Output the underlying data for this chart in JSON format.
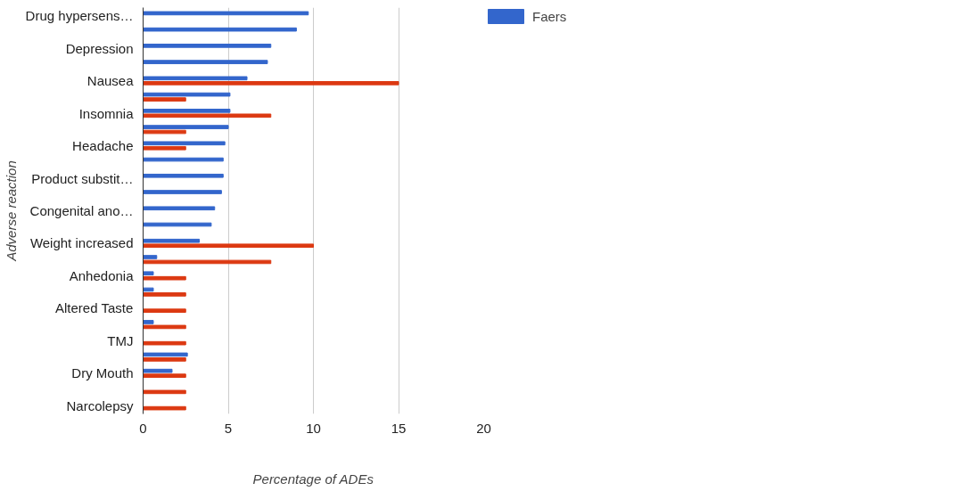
{
  "chart_data": {
    "type": "bar",
    "orientation": "horizontal",
    "xlabel": "Percentage of ADEs",
    "ylabel": "Adverse reaction",
    "categories": [
      "Drug hypersens…",
      null,
      "Depression",
      null,
      "Nausea",
      null,
      "Insomnia",
      null,
      "Headache",
      null,
      "Product substit…",
      null,
      "Congenital ano…",
      null,
      "Weight increased",
      null,
      "Anhedonia",
      null,
      "Altered Taste",
      null,
      "TMJ",
      null,
      "Dry Mouth",
      null,
      "Narcolepsy"
    ],
    "series": [
      {
        "name": "Faers",
        "color": "#3366cc",
        "values": [
          9.7,
          9.0,
          7.5,
          7.3,
          6.1,
          5.1,
          5.1,
          5.0,
          4.8,
          4.7,
          4.7,
          4.6,
          4.2,
          4.0,
          3.3,
          0.8,
          0.6,
          0.6,
          null,
          0.6,
          null,
          2.6,
          1.7,
          null,
          null
        ]
      },
      {
        "color": "#dc3912",
        "values": [
          null,
          null,
          null,
          null,
          15,
          2.5,
          7.5,
          2.5,
          2.5,
          null,
          null,
          null,
          null,
          null,
          10,
          7.5,
          2.5,
          2.5,
          2.5,
          2.5,
          2.5,
          2.5,
          2.5,
          2.5,
          2.5
        ]
      }
    ],
    "xlim": [
      0,
      20
    ],
    "xticks": [
      0,
      5,
      10,
      15,
      20
    ],
    "grid": "x",
    "legend": "top right"
  }
}
